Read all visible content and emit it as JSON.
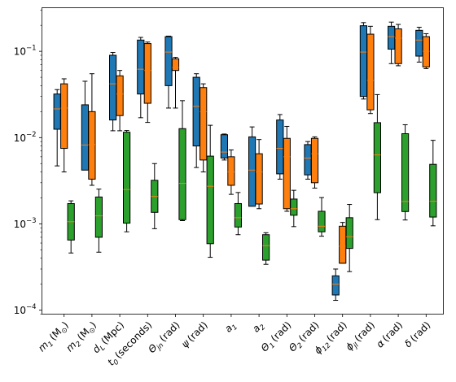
{
  "chart_data": {
    "type": "box",
    "yscale": "log",
    "ylim": [
      9e-05,
      0.32
    ],
    "y_ticks": [
      {
        "value": 0.0001,
        "base": "10",
        "exp": "−4"
      },
      {
        "value": 0.001,
        "base": "10",
        "exp": "−3"
      },
      {
        "value": 0.01,
        "base": "10",
        "exp": "−2"
      },
      {
        "value": 0.1,
        "base": "10",
        "exp": "−1"
      }
    ],
    "categories": [
      {
        "sym": "m",
        "sub": "1",
        "unit": "(M",
        "unit_sub": "⊙",
        "unit_end": ")"
      },
      {
        "sym": "m",
        "sub": "2",
        "unit": "(M",
        "unit_sub": "⊙",
        "unit_end": ")"
      },
      {
        "sym": "d",
        "sub": "L",
        "unit": "(Mpc)",
        "unit_sub": "",
        "unit_end": ""
      },
      {
        "sym": "t",
        "sub": "0",
        "unit": "(seconds)",
        "unit_sub": "",
        "unit_end": ""
      },
      {
        "sym": "Θ",
        "sub": "jn",
        "unit": "(rad)",
        "unit_sub": "",
        "unit_end": ""
      },
      {
        "sym": "ψ",
        "sub": "",
        "unit": "(rad)",
        "unit_sub": "",
        "unit_end": ""
      },
      {
        "sym": "a",
        "sub": "1",
        "unit": "",
        "unit_sub": "",
        "unit_end": ""
      },
      {
        "sym": "a",
        "sub": "2",
        "unit": "",
        "unit_sub": "",
        "unit_end": ""
      },
      {
        "sym": "Θ",
        "sub": "1",
        "unit": "(rad)",
        "unit_sub": "",
        "unit_end": ""
      },
      {
        "sym": "Θ",
        "sub": "2",
        "unit": "(rad)",
        "unit_sub": "",
        "unit_end": ""
      },
      {
        "sym": "ϕ",
        "sub": "12",
        "unit": "(rad)",
        "unit_sub": "",
        "unit_end": ""
      },
      {
        "sym": "ϕ",
        "sub": "jl",
        "unit": "(rad)",
        "unit_sub": "",
        "unit_end": ""
      },
      {
        "sym": "α",
        "sub": "",
        "unit": "(rad)",
        "unit_sub": "",
        "unit_end": ""
      },
      {
        "sym": "δ",
        "sub": "",
        "unit": "(rad)",
        "unit_sub": "",
        "unit_end": ""
      }
    ],
    "series": [
      {
        "color": "#1f77b4",
        "boxes": [
          [
            0.0047,
            0.0125,
            0.0215,
            0.032,
            0.036
          ],
          [
            0.0055,
            0.0042,
            0.0082,
            0.024,
            0.045
          ],
          [
            0.012,
            0.016,
            0.042,
            0.09,
            0.097
          ],
          [
            0.017,
            0.032,
            0.062,
            0.135,
            0.145
          ],
          [
            0.022,
            0.04,
            0.098,
            0.148,
            0.15
          ],
          [
            0.0045,
            0.008,
            0.023,
            0.05,
            0.055
          ],
          [
            0.0055,
            0.0058,
            0.0068,
            0.0108,
            0.011
          ],
          [
            0.0018,
            0.0016,
            0.0042,
            0.0102,
            0.0133
          ],
          [
            0.0033,
            0.0038,
            0.0075,
            0.016,
            0.0185
          ],
          [
            0.0033,
            0.0037,
            0.0058,
            0.0083,
            0.009
          ],
          [
            0.00013,
            0.00015,
            0.0002,
            0.00025,
            0.0003
          ],
          [
            0.028,
            0.03,
            0.098,
            0.198,
            0.215
          ],
          [
            0.072,
            0.106,
            0.148,
            0.195,
            0.218
          ],
          [
            0.075,
            0.088,
            0.135,
            0.175,
            0.19
          ]
        ]
      },
      {
        "color": "#ff7f0e",
        "boxes": [
          [
            0.004,
            0.0075,
            0.022,
            0.042,
            0.048
          ],
          [
            0.0028,
            0.0033,
            0.0083,
            0.02,
            0.055
          ],
          [
            0.012,
            0.018,
            0.032,
            0.052,
            0.06
          ],
          [
            0.015,
            0.025,
            0.06,
            0.123,
            0.128
          ],
          [
            0.022,
            0.06,
            0.065,
            0.082,
            0.085
          ],
          [
            0.004,
            0.0055,
            0.02,
            0.038,
            0.042
          ],
          [
            0.0022,
            0.0028,
            0.004,
            0.006,
            0.0072
          ],
          [
            0.0015,
            0.0017,
            0.004,
            0.0065,
            0.0095
          ],
          [
            0.0014,
            0.0015,
            0.006,
            0.0098,
            0.0135
          ],
          [
            0.0026,
            0.003,
            0.0065,
            0.0098,
            0.0102
          ],
          [
            0.00035,
            0.00035,
            0.00055,
            0.00094,
            0.00104
          ],
          [
            0.019,
            0.021,
            0.046,
            0.158,
            0.195
          ],
          [
            0.068,
            0.072,
            0.142,
            0.182,
            0.205
          ],
          [
            0.063,
            0.066,
            0.1,
            0.148,
            0.16
          ]
        ]
      },
      {
        "color": "#2ca02c",
        "boxes": [
          [
            0.00046,
            0.00065,
            0.00106,
            0.00172,
            0.00185
          ],
          [
            0.00047,
            0.0007,
            0.00124,
            0.00205,
            0.00253
          ],
          [
            0.00081,
            0.00102,
            0.0025,
            0.01155,
            0.01208
          ],
          [
            0.00088,
            0.00136,
            0.00208,
            0.0032,
            0.005
          ],
          [
            0.00109,
            0.00112,
            0.00295,
            0.0127,
            0.0268
          ],
          [
            0.00041,
            0.00059,
            0.00273,
            0.0061,
            0.0139
          ],
          [
            0.00075,
            0.00092,
            0.00118,
            0.00172,
            0.00231
          ],
          [
            0.00034,
            0.00038,
            0.00056,
            0.00075,
            0.00079
          ],
          [
            0.00093,
            0.00126,
            0.0015,
            0.00194,
            0.00245
          ],
          [
            0.00072,
            0.00081,
            0.00094,
            0.0014,
            0.00202
          ],
          [
            0.00028,
            0.00052,
            0.00071,
            0.00118,
            0.00168
          ],
          [
            0.00112,
            0.0023,
            0.0063,
            0.0149,
            0.0315
          ],
          [
            0.00111,
            0.00139,
            0.00182,
            0.0111,
            0.0141
          ],
          [
            0.00095,
            0.0012,
            0.00183,
            0.0049,
            0.0093
          ]
        ]
      }
    ],
    "median_color": "#ff7f0e",
    "grid": false,
    "legend": "none",
    "title": "",
    "xlabel": "",
    "ylabel": ""
  }
}
